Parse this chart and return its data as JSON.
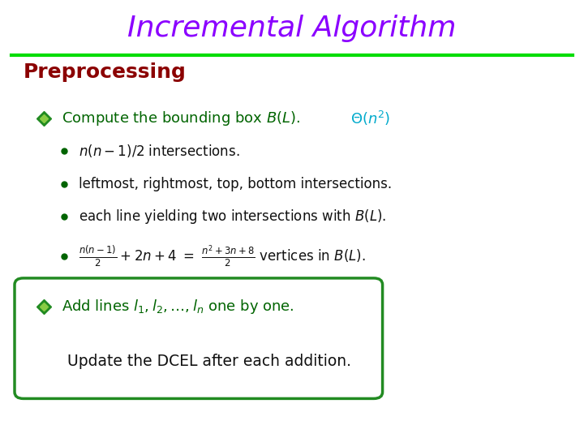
{
  "title": "Incremental Algorithm",
  "title_color": "#8B00FF",
  "title_fontsize": 26,
  "separator_color": "#00DD00",
  "separator_linewidth": 3,
  "bg_color": "#FFFFFF",
  "section_label": "Preprocessing",
  "section_color": "#8B0000",
  "section_fontsize": 18,
  "bullet_icon_color": "#228B22",
  "bullet_color": "#006400",
  "text_color": "#000000",
  "cyan_color": "#00AACC",
  "box_border_color": "#228B22"
}
